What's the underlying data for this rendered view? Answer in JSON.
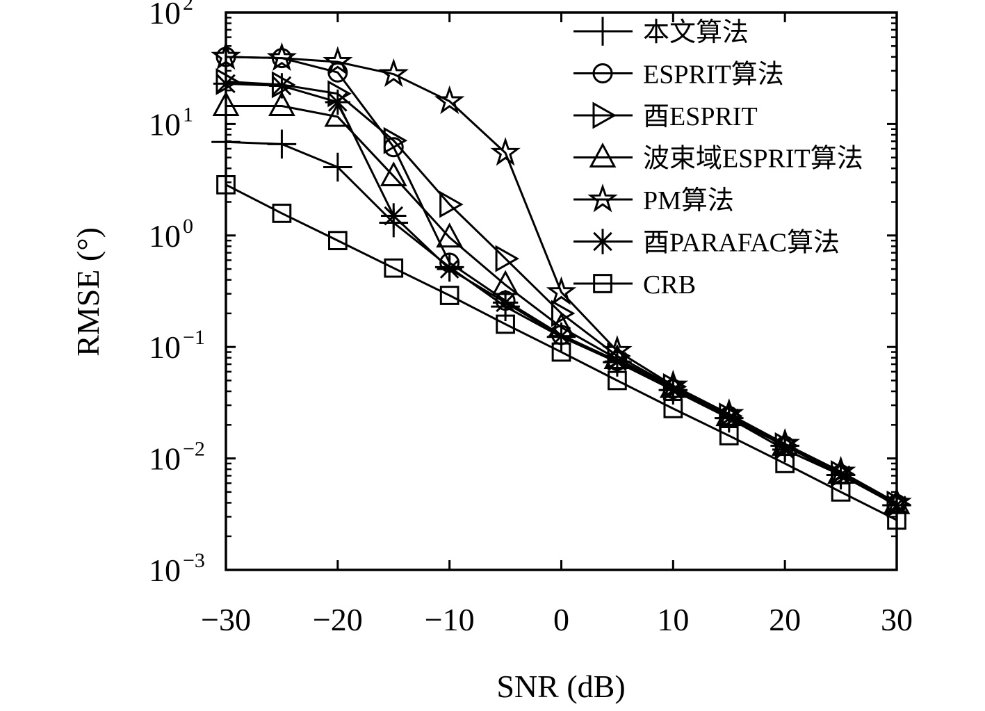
{
  "chart_data": {
    "type": "line",
    "title": "",
    "xlabel": "SNR (dB)",
    "ylabel": "RMSE (°)",
    "yscale": "log",
    "xlim": [
      -30,
      30
    ],
    "ylim": [
      0.001,
      100
    ],
    "xticks": [
      -30,
      -20,
      -10,
      0,
      10,
      20,
      30
    ],
    "xtick_labels": [
      "−30",
      "−20",
      "−10",
      "0",
      "10",
      "20",
      "30"
    ],
    "yticks": [
      {
        "base": "10",
        "exp": "2",
        "value": 100
      },
      {
        "base": "10",
        "exp": "1",
        "value": 10
      },
      {
        "base": "10",
        "exp": "0",
        "value": 1
      },
      {
        "base": "10",
        "exp": "−1",
        "value": 0.1
      },
      {
        "base": "10",
        "exp": "−2",
        "value": 0.01
      },
      {
        "base": "10",
        "exp": "−3",
        "value": 0.001
      }
    ],
    "grid": false,
    "legend_position": "top-right",
    "x": [
      -30,
      -25,
      -20,
      -15,
      -10,
      -5,
      0,
      5,
      10,
      15,
      20,
      25,
      30
    ],
    "series": [
      {
        "name": "本文算法",
        "marker": "plus",
        "values": [
          6.9,
          6.6,
          4.1,
          1.3,
          0.52,
          0.23,
          0.123,
          0.073,
          0.041,
          0.023,
          0.013,
          0.0071,
          0.0038
        ]
      },
      {
        "name": "ESPRIT算法",
        "marker": "circle",
        "values": [
          40,
          39,
          29,
          6.2,
          0.57,
          0.26,
          0.128,
          0.075,
          0.042,
          0.024,
          0.013,
          0.0072,
          0.0039
        ]
      },
      {
        "name": "酉ESPRIT",
        "marker": "triangle-right",
        "values": [
          24,
          22.5,
          18.7,
          7.1,
          1.9,
          0.62,
          0.2,
          0.083,
          0.044,
          0.024,
          0.013,
          0.0073,
          0.0039
        ]
      },
      {
        "name": "波束域ESPRIT算法",
        "marker": "triangle-up",
        "values": [
          14.5,
          14.5,
          11.6,
          3.4,
          0.96,
          0.36,
          0.15,
          0.078,
          0.043,
          0.024,
          0.013,
          0.0073,
          0.0039
        ]
      },
      {
        "name": "PM算法",
        "marker": "star",
        "values": [
          40,
          39,
          36,
          28,
          16,
          5.5,
          0.31,
          0.092,
          0.045,
          0.025,
          0.0135,
          0.0076,
          0.004
        ]
      },
      {
        "name": "酉PARAFAC算法",
        "marker": "asterisk",
        "values": [
          23,
          22,
          15.7,
          1.5,
          0.5,
          0.25,
          0.125,
          0.074,
          0.041,
          0.023,
          0.012,
          0.0071,
          0.0038
        ]
      },
      {
        "name": "CRB",
        "marker": "square",
        "values": [
          2.85,
          1.58,
          0.9,
          0.51,
          0.29,
          0.16,
          0.09,
          0.05,
          0.028,
          0.016,
          0.009,
          0.005,
          0.0028
        ]
      }
    ]
  }
}
